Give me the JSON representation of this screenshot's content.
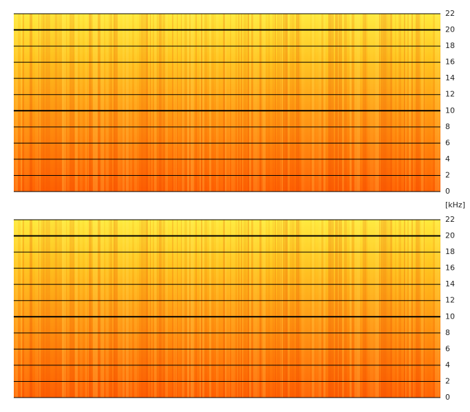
{
  "chart_data": [
    {
      "type": "spectrogram",
      "ylim": [
        0,
        22
      ],
      "yticks": [
        0,
        2,
        4,
        6,
        8,
        10,
        12,
        14,
        16,
        18,
        20,
        22
      ],
      "grid": true
    },
    {
      "type": "spectrogram",
      "ylabel": "[kHz]",
      "ylim": [
        0,
        22
      ],
      "yticks": [
        0,
        2,
        4,
        6,
        8,
        10,
        12,
        14,
        16,
        18,
        20,
        22
      ],
      "grid": true
    }
  ]
}
